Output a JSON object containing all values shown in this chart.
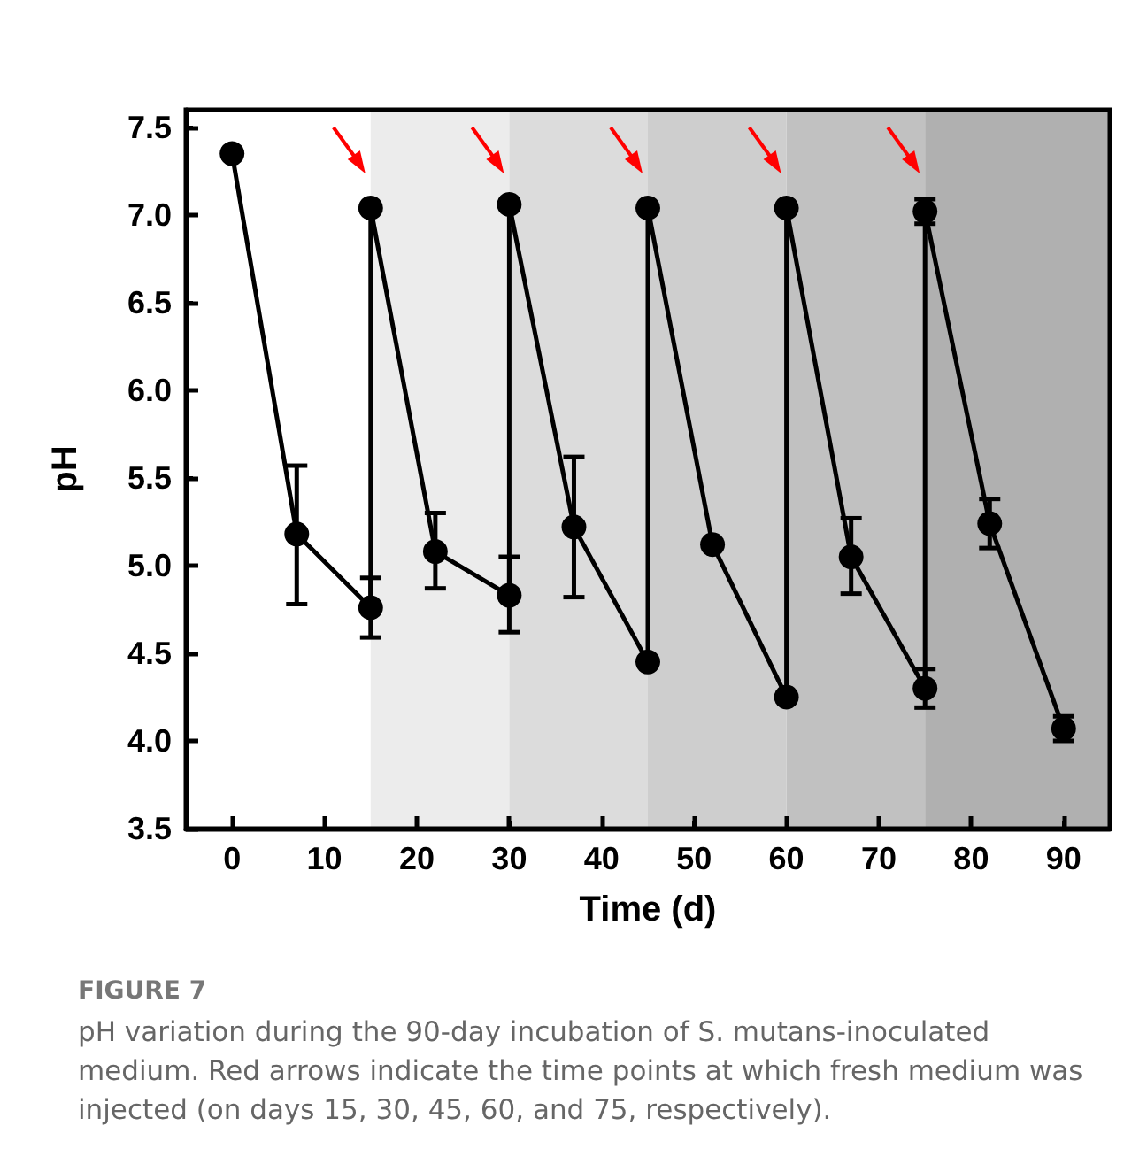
{
  "chart_data": {
    "type": "line",
    "xlabel": "Time (d)",
    "ylabel": "pH",
    "x": [
      0,
      7,
      15,
      15,
      22,
      30,
      30,
      37,
      45,
      45,
      52,
      60,
      60,
      67,
      75,
      75,
      82,
      90
    ],
    "series": [
      {
        "color": "#000000",
        "values": [
          7.35,
          5.18,
          4.76,
          7.04,
          5.08,
          4.83,
          7.06,
          5.22,
          4.45,
          7.04,
          5.12,
          4.25,
          7.04,
          5.05,
          4.3,
          7.02,
          5.24,
          4.07
        ],
        "errors": [
          null,
          [
            4.78,
            5.57
          ],
          [
            4.59,
            4.93
          ],
          null,
          [
            4.87,
            5.3
          ],
          [
            4.62,
            5.05
          ],
          null,
          [
            4.82,
            5.62
          ],
          null,
          null,
          null,
          null,
          null,
          [
            4.84,
            5.27
          ],
          [
            4.19,
            4.41
          ],
          [
            6.95,
            7.09
          ],
          [
            5.1,
            5.38
          ],
          [
            4.0,
            4.14
          ]
        ]
      }
    ],
    "xlim": [
      -5,
      95
    ],
    "xticks": [
      0,
      10,
      20,
      30,
      40,
      50,
      60,
      70,
      80,
      90
    ],
    "ylim": [
      3.5,
      7.6
    ],
    "yticks": [
      {
        "value": 3.5,
        "label": "3.5"
      },
      {
        "value": 4,
        "label": "4.0"
      },
      {
        "value": 4.5,
        "label": "4.5"
      },
      {
        "value": 5,
        "label": "5.0"
      },
      {
        "value": 5.5,
        "label": "5.5"
      },
      {
        "value": 6,
        "label": "6.0"
      },
      {
        "value": 6.5,
        "label": "6.5"
      },
      {
        "value": 7,
        "label": "7.0"
      },
      {
        "value": 7.5,
        "label": "7.5"
      }
    ],
    "bands": [
      {
        "axis": "x",
        "from": 15,
        "to": 30,
        "color": "#ececec"
      },
      {
        "axis": "x",
        "from": 30,
        "to": 45,
        "color": "#dcdcdc"
      },
      {
        "axis": "x",
        "from": 45,
        "to": 60,
        "color": "#cecece"
      },
      {
        "axis": "x",
        "from": 60,
        "to": 75,
        "color": "#c1c1c1"
      },
      {
        "axis": "x",
        "from": 75,
        "to": 95,
        "color": "#b0b0b0"
      }
    ],
    "marker": "circle",
    "line_style": "solid",
    "annotations": [
      "FIGURE 7",
      "pH variation during the 90-day incubation of S. mutans-inoculated medium. Red arrows indicate the time points at which fresh medium was injected (on days 15, 30, 45, 60, and 75, respectively)."
    ]
  }
}
